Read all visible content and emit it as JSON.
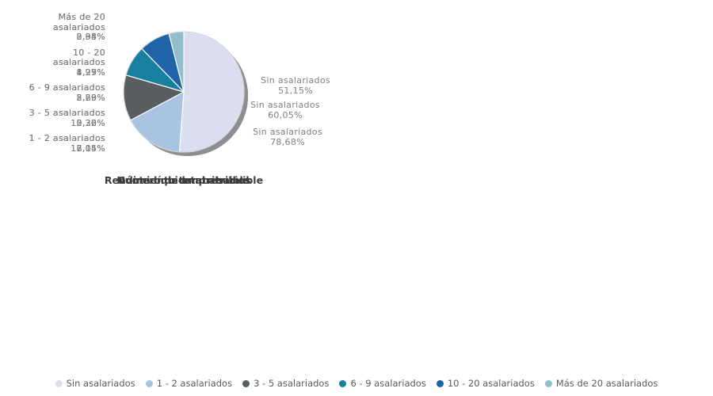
{
  "page": {
    "background": "#ffffff",
    "shadow_color": "#8e8e8e",
    "slice_border_color": "#ffffff",
    "pie_outline_color": "#9aa0ad"
  },
  "legend": {
    "items": [
      {
        "label": "Sin asalariados",
        "color": "#dadeef"
      },
      {
        "label": "1 - 2 asalariados",
        "color": "#a9c3e2"
      },
      {
        "label": "3 - 5 asalariados",
        "color": "#595e61"
      },
      {
        "label": "6 - 9 asalariados",
        "color": "#1780a0"
      },
      {
        "label": "10 - 20 asalariados",
        "color": "#1f64a8"
      },
      {
        "label": "Más de 20 asalariados",
        "color": "#92becb"
      }
    ]
  },
  "chart_data": [
    {
      "type": "pie",
      "title": "Número de empresarios",
      "categories": [
        "Sin asalariados",
        "1 - 2 asalariados",
        "3 - 5 asalariados",
        "6 - 9 asalariados",
        "10 - 20 asalariados",
        "Más de 20 asalariados"
      ],
      "values": [
        78.68,
        12.15,
        5.36,
        2.2,
        1.27,
        0.34
      ],
      "value_labels": [
        "78,68%",
        "12,15%",
        "5,36%",
        "2,20%",
        "1,27%",
        "0,34%"
      ],
      "start_angle_deg": -90,
      "direction": "clockwise",
      "left_labels": [
        "Más de 20\nasalariados\n0,34%",
        "10 - 20\nasalariados\n1,27%",
        "6 - 9 asalariados\n2,20%",
        "3 - 5 asalariados\n5,36%",
        "1 - 2 asalariados\n12,15%"
      ],
      "right_label": "Sin asalariados\n78,68%"
    },
    {
      "type": "pie",
      "title": "Rendimiento total atribuible",
      "categories": [
        "Sin asalariados",
        "1 - 2 asalariados",
        "3 - 5 asalariados",
        "6 - 9 asalariados",
        "10 - 20 asalariados",
        "Más de 20 asalariados"
      ],
      "values": [
        60.05,
        17.04,
        10.22,
        5.69,
        4.95,
        2.05
      ],
      "value_labels": [
        "60,05%",
        "17,04%",
        "10,22%",
        "5,69%",
        "4,95%",
        "2,05%"
      ],
      "start_angle_deg": -90,
      "direction": "clockwise",
      "left_labels": [
        "Más de 20\nasalariados\n2,05%",
        "10 - 20\nasalariados\n4,95%",
        "6 - 9 asalariados\n5,69%",
        "3 - 5 asalariados\n10,22%",
        "1 - 2 asalariados\n17,04%"
      ],
      "right_label": "Sin asalariados\n60,05%"
    },
    {
      "type": "pie",
      "title": "Cuota líquida atribuible",
      "categories": [
        "Sin asalariados",
        "1 - 2 asalariados",
        "3 - 5 asalariados",
        "6 - 9 asalariados",
        "10 - 20 asalariados",
        "Más de 20 asalariados"
      ],
      "values": [
        51.15,
        16.05,
        12.3,
        8.23,
        8.29,
        3.98
      ],
      "value_labels": [
        "51,15%",
        "16,05%",
        "12,30%",
        "8,23%",
        "8,29%",
        "3,98%"
      ],
      "start_angle_deg": -90,
      "direction": "clockwise",
      "left_labels": [
        "Más de 20\nasalariados\n3,98%",
        "10 - 20\nasalariados\n8,29%",
        "6 - 9 asalariados\n8,23%",
        "3 - 5 asalariados\n12,30%",
        "1 - 2 asalariados\n16,05%"
      ],
      "right_label": "Sin asalariados\n51,15%"
    }
  ]
}
